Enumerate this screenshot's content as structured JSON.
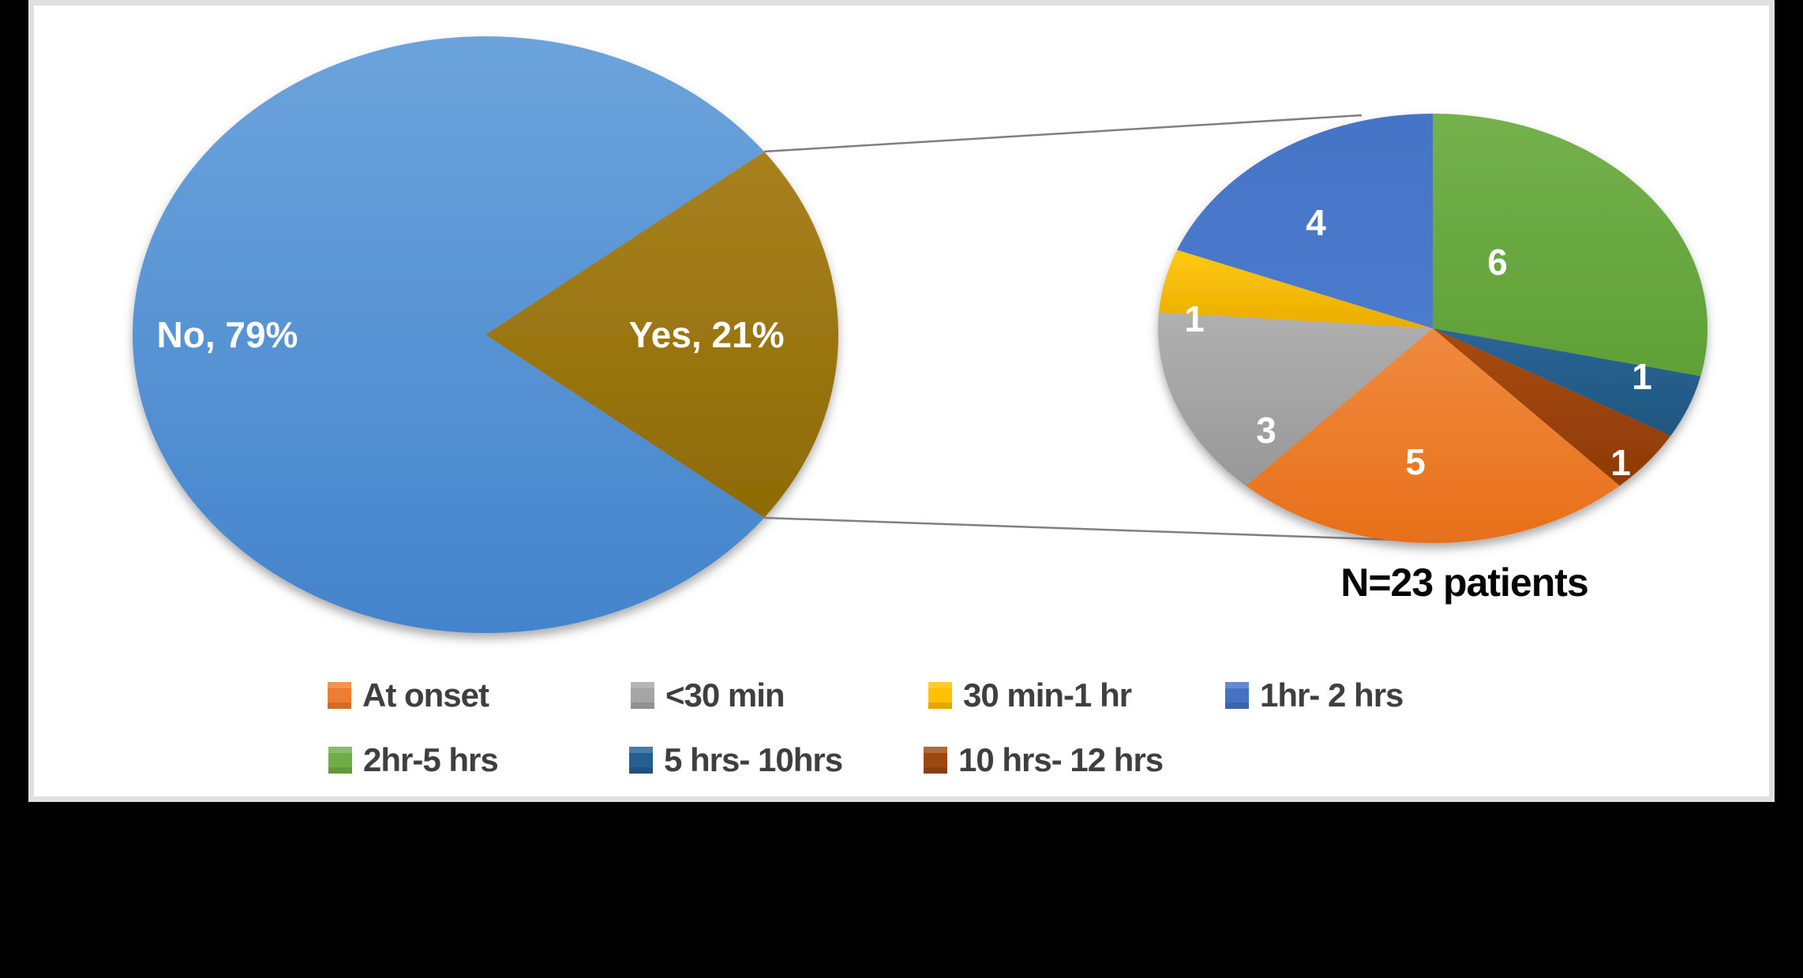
{
  "window": {
    "background": "#000000",
    "panel_background": "#FFFFFF",
    "panel_border_color": "#E0E0E0"
  },
  "chart_data": {
    "type": "pie",
    "subtype": "pie-of-pie",
    "title": "",
    "annotation": "N=23 patients",
    "main_pie": {
      "labels": [
        "No",
        "Yes"
      ],
      "values_pct": [
        79,
        21
      ],
      "display_labels": [
        "No, 79%",
        "Yes, 21%"
      ],
      "colors": [
        "#5B9BD5",
        "#9C7712"
      ],
      "label_color": "#FFFFFF"
    },
    "secondary_pie": {
      "description": "breakdown of the Yes slice, clockwise from top",
      "categories": [
        "2hr-5 hrs",
        "5 hrs- 10hrs",
        "10 hrs- 12 hrs",
        "At onset",
        "<30 min",
        "30 min-1 hr",
        "1hr- 2 hrs"
      ],
      "values": [
        6,
        1,
        1,
        5,
        3,
        1,
        4
      ],
      "colors": [
        "#70AD47",
        "#255E91",
        "#9E480E",
        "#ED7D31",
        "#A5A5A5",
        "#FFC000",
        "#4472C4"
      ],
      "start_angle_deg": 0,
      "direction": "clockwise",
      "value_label_color": "#FFFFFF"
    },
    "legend": {
      "position": "bottom",
      "text_color": "#3F3F3F",
      "entries": [
        {
          "label": "At onset",
          "color": "#ED7D31"
        },
        {
          "label": "<30 min",
          "color": "#A5A5A5"
        },
        {
          "label": "30 min-1 hr",
          "color": "#FFC000"
        },
        {
          "label": "1hr- 2 hrs",
          "color": "#4472C4"
        },
        {
          "label": "2hr-5 hrs",
          "color": "#70AD47"
        },
        {
          "label": "5 hrs- 10hrs",
          "color": "#255E91"
        },
        {
          "label": "10 hrs- 12 hrs",
          "color": "#9E480E"
        }
      ]
    },
    "connector_lines": true,
    "connector_line_color": "#7F7F7F"
  }
}
